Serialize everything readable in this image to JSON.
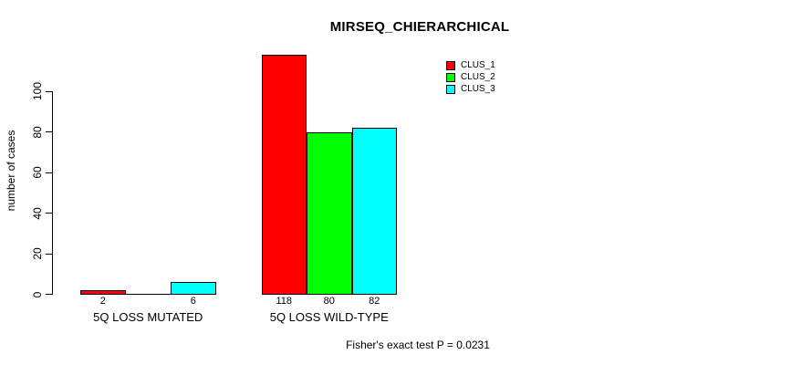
{
  "chart_data": {
    "type": "bar",
    "title": "MIRSEQ_CHIERARCHICAL",
    "ylabel": "number of cases",
    "xlabel": "",
    "categories": [
      "5Q LOSS MUTATED",
      "5Q LOSS WILD-TYPE"
    ],
    "series": [
      {
        "name": "CLUS_1",
        "color": "#FF0000",
        "values": [
          2,
          118
        ]
      },
      {
        "name": "CLUS_2",
        "color": "#00FF00",
        "values": [
          0,
          80
        ]
      },
      {
        "name": "CLUS_3",
        "color": "#00FFFF",
        "values": [
          6,
          82
        ]
      }
    ],
    "bar_value_labels_shown": [
      "2",
      "6",
      "118",
      "80",
      "82"
    ],
    "yticks": [
      0,
      20,
      40,
      60,
      80,
      100
    ],
    "ylim": [
      0,
      100
    ],
    "grid": false,
    "legend": {
      "position": "top-right",
      "entries": [
        "CLUS_1",
        "CLUS_2",
        "CLUS_3"
      ]
    },
    "annotation": "Fisher's exact test P = 0.0231",
    "colors": {
      "background": "#FFFFFF",
      "axis": "#000000",
      "bar_border": "#000000"
    }
  }
}
